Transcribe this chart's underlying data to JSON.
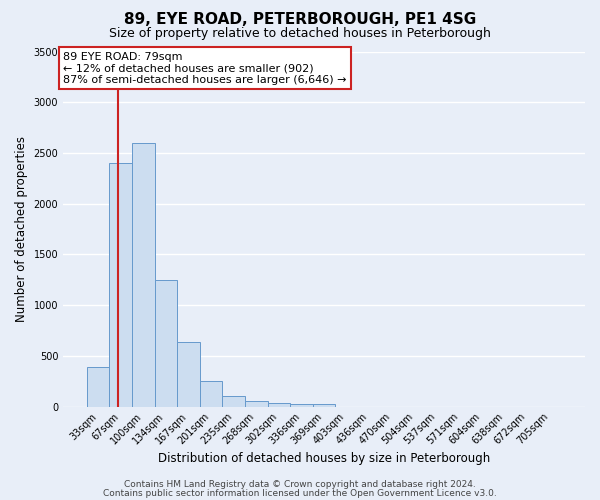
{
  "title": "89, EYE ROAD, PETERBOROUGH, PE1 4SG",
  "subtitle": "Size of property relative to detached houses in Peterborough",
  "xlabel": "Distribution of detached houses by size in Peterborough",
  "ylabel": "Number of detached properties",
  "bar_labels": [
    "33sqm",
    "67sqm",
    "100sqm",
    "134sqm",
    "167sqm",
    "201sqm",
    "235sqm",
    "268sqm",
    "302sqm",
    "336sqm",
    "369sqm",
    "403sqm",
    "436sqm",
    "470sqm",
    "504sqm",
    "537sqm",
    "571sqm",
    "604sqm",
    "638sqm",
    "672sqm",
    "705sqm"
  ],
  "bar_values": [
    390,
    2400,
    2600,
    1250,
    640,
    250,
    105,
    60,
    40,
    30,
    25,
    0,
    0,
    0,
    0,
    0,
    0,
    0,
    0,
    0,
    0
  ],
  "bar_color": "#ccddf0",
  "bar_edge_color": "#6699cc",
  "vline_color": "#cc2222",
  "vline_index": 1.36,
  "annotation_text": "89 EYE ROAD: 79sqm\n← 12% of detached houses are smaller (902)\n87% of semi-detached houses are larger (6,646) →",
  "annotation_box_color": "white",
  "annotation_box_edge": "#cc2222",
  "ylim": [
    0,
    3500
  ],
  "footnote1": "Contains HM Land Registry data © Crown copyright and database right 2024.",
  "footnote2": "Contains public sector information licensed under the Open Government Licence v3.0.",
  "bg_color": "#e8eef8",
  "plot_bg_color": "#e8eef8",
  "grid_color": "white",
  "title_fontsize": 11,
  "subtitle_fontsize": 9,
  "xlabel_fontsize": 8.5,
  "ylabel_fontsize": 8.5,
  "tick_fontsize": 7,
  "footnote_fontsize": 6.5,
  "annot_fontsize": 8
}
